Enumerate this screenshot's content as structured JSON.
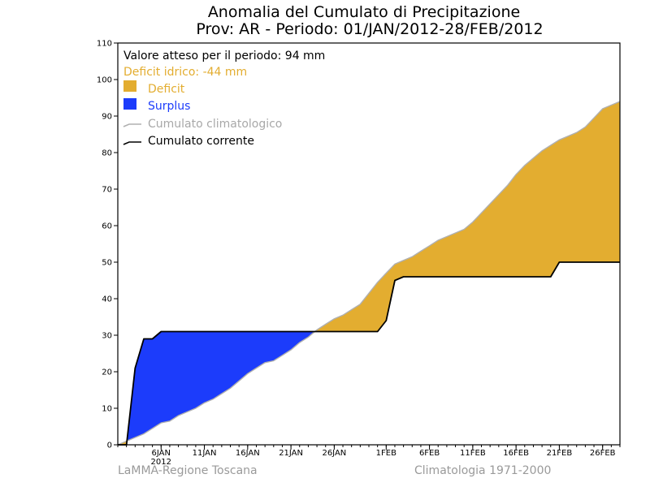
{
  "colors": {
    "deficit": "#e3ad30",
    "surplus": "#1c3cfb",
    "climatology_line": "#b0b0b0",
    "current_line": "#000000",
    "deficit_text": "#e3ad30",
    "surplus_text": "#1c3cfb",
    "climatology_text": "#a8a8a8",
    "footer": "#9a9a9a"
  },
  "chart_data": {
    "type": "area",
    "title": "Anomalia del Cumulato di Precipitazione",
    "subtitle": "Prov: AR - Periodo: 01/JAN/2012-28/FEB/2012",
    "ylim": [
      0,
      110
    ],
    "yticks": [
      0,
      10,
      20,
      30,
      40,
      50,
      60,
      70,
      80,
      90,
      100,
      110
    ],
    "xlim": [
      1,
      59
    ],
    "xticks": [
      {
        "x": 6,
        "label": "6JAN"
      },
      {
        "x": 11,
        "label": "11JAN"
      },
      {
        "x": 16,
        "label": "16JAN"
      },
      {
        "x": 21,
        "label": "21JAN"
      },
      {
        "x": 26,
        "label": "26JAN"
      },
      {
        "x": 32,
        "label": "1FEB"
      },
      {
        "x": 37,
        "label": "6FEB"
      },
      {
        "x": 42,
        "label": "11FEB"
      },
      {
        "x": 47,
        "label": "16FEB"
      },
      {
        "x": 52,
        "label": "21FEB"
      },
      {
        "x": 57,
        "label": "26FEB"
      }
    ],
    "year_label": "2012",
    "grid": false,
    "legend": {
      "expected": "Valore atteso per il periodo: 94 mm",
      "deficit_value": "Deficit idrico: -44 mm",
      "deficit": "Deficit",
      "surplus": "Surplus",
      "climatology": "Cumulato climatologico",
      "current": "Cumulato corrente"
    },
    "series": [
      {
        "name": "Cumulato climatologico",
        "points": [
          [
            1,
            0
          ],
          [
            2,
            1
          ],
          [
            3,
            2
          ],
          [
            4,
            3
          ],
          [
            5,
            4.5
          ],
          [
            6,
            6
          ],
          [
            7,
            6.5
          ],
          [
            8,
            8
          ],
          [
            9,
            9
          ],
          [
            10,
            10
          ],
          [
            11,
            11.5
          ],
          [
            12,
            12.5
          ],
          [
            13,
            14
          ],
          [
            14,
            15.5
          ],
          [
            15,
            17.5
          ],
          [
            16,
            19.5
          ],
          [
            17,
            21
          ],
          [
            18,
            22.5
          ],
          [
            19,
            23
          ],
          [
            20,
            24.5
          ],
          [
            21,
            26
          ],
          [
            22,
            28
          ],
          [
            23,
            29.5
          ],
          [
            24,
            31.5
          ],
          [
            25,
            33
          ],
          [
            26,
            34.5
          ],
          [
            27,
            35.5
          ],
          [
            28,
            37
          ],
          [
            29,
            38.5
          ],
          [
            30,
            41.5
          ],
          [
            31,
            44.5
          ],
          [
            32,
            47
          ],
          [
            33,
            49.5
          ],
          [
            34,
            50.5
          ],
          [
            35,
            51.5
          ],
          [
            36,
            53
          ],
          [
            37,
            54.5
          ],
          [
            38,
            56
          ],
          [
            39,
            57
          ],
          [
            40,
            58
          ],
          [
            41,
            59
          ],
          [
            42,
            61
          ],
          [
            43,
            63.5
          ],
          [
            44,
            66
          ],
          [
            45,
            68.5
          ],
          [
            46,
            71
          ],
          [
            47,
            74
          ],
          [
            48,
            76.5
          ],
          [
            49,
            78.5
          ],
          [
            50,
            80.5
          ],
          [
            51,
            82
          ],
          [
            52,
            83.5
          ],
          [
            53,
            84.5
          ],
          [
            54,
            85.5
          ],
          [
            55,
            87
          ],
          [
            56,
            89.5
          ],
          [
            57,
            92
          ],
          [
            58,
            93
          ],
          [
            59,
            94
          ]
        ]
      },
      {
        "name": "Cumulato corrente",
        "points": [
          [
            1,
            0
          ],
          [
            2,
            0
          ],
          [
            3,
            21
          ],
          [
            4,
            29
          ],
          [
            5,
            29
          ],
          [
            6,
            31
          ],
          [
            7,
            31
          ],
          [
            24,
            31
          ],
          [
            31,
            31
          ],
          [
            32,
            34
          ],
          [
            33,
            45
          ],
          [
            34,
            46
          ],
          [
            51,
            46
          ],
          [
            52,
            50
          ],
          [
            59,
            50
          ]
        ]
      }
    ]
  },
  "footer": {
    "left": "LaMMA-Regione Toscana",
    "right": "Climatologia 1971-2000"
  }
}
